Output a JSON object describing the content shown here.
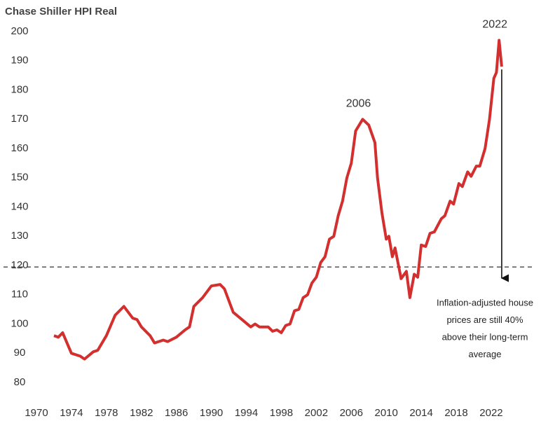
{
  "chart_data": {
    "type": "line",
    "title": "Chase Shiller HPI Real",
    "x": [
      1972,
      1972.5,
      1973,
      1974,
      1975,
      1975.5,
      1976.5,
      1977,
      1978,
      1979,
      1980,
      1981,
      1981.5,
      1982,
      1983,
      1983.5,
      1984.5,
      1985,
      1986,
      1987,
      1987.5,
      1988,
      1989,
      1990,
      1991,
      1991.5,
      1992.5,
      1993.5,
      1994.5,
      1995,
      1995.5,
      1996.5,
      1997,
      1997.5,
      1998,
      1998.5,
      1999,
      1999.5,
      2000,
      2000.5,
      2001,
      2001.5,
      2002,
      2002.5,
      2003,
      2003.5,
      2004,
      2004.5,
      2005,
      2005.5,
      2006,
      2006.5,
      2007.3,
      2008,
      2008.7,
      2009,
      2009.5,
      2010,
      2010.3,
      2010.7,
      2011,
      2011.7,
      2012.3,
      2012.7,
      2013.2,
      2013.6,
      2014,
      2014.5,
      2015,
      2015.5,
      2016.3,
      2016.7,
      2017.3,
      2017.7,
      2018.3,
      2018.7,
      2019.3,
      2019.7,
      2020.3,
      2020.7,
      2021.3,
      2021.8,
      2022.3,
      2022.6,
      2022.9,
      2023.2
    ],
    "series": [
      {
        "name": "Chase Shiller HPI Real",
        "color": "#d32f2f",
        "values": [
          96,
          95.5,
          97,
          90,
          89,
          88,
          90.5,
          91,
          96,
          103,
          106,
          102,
          101.5,
          99,
          96,
          93.5,
          94.5,
          94,
          95.5,
          98,
          99,
          106,
          109,
          113,
          113.5,
          112,
          104,
          101.5,
          99,
          100,
          99,
          99,
          97.5,
          98,
          97,
          99.5,
          100,
          104.5,
          105,
          109,
          110,
          114,
          116,
          121,
          123,
          129,
          130,
          137,
          142,
          150,
          155,
          166,
          170,
          168,
          162,
          150,
          138,
          129,
          130,
          123,
          126,
          115.5,
          118,
          109,
          117,
          116,
          127,
          126.5,
          131,
          131.5,
          136,
          137,
          142,
          141,
          148,
          147,
          152,
          150.5,
          154,
          154,
          160,
          170,
          184,
          186,
          197,
          188
        ]
      }
    ],
    "xlim": [
      1970,
      2024
    ],
    "xticks": [
      1970,
      1974,
      1978,
      1982,
      1986,
      1990,
      1994,
      1998,
      2002,
      2006,
      2010,
      2014,
      2018,
      2022
    ],
    "ylim": [
      80,
      200
    ],
    "yticks": [
      80,
      90,
      100,
      110,
      120,
      130,
      140,
      150,
      160,
      170,
      180,
      190,
      200
    ],
    "reference_line": 119.5,
    "annotations": [
      "2006",
      "2022"
    ],
    "note": [
      "Inflation-adjusted house",
      "prices are still 40%",
      "above their long-term",
      "average"
    ]
  }
}
